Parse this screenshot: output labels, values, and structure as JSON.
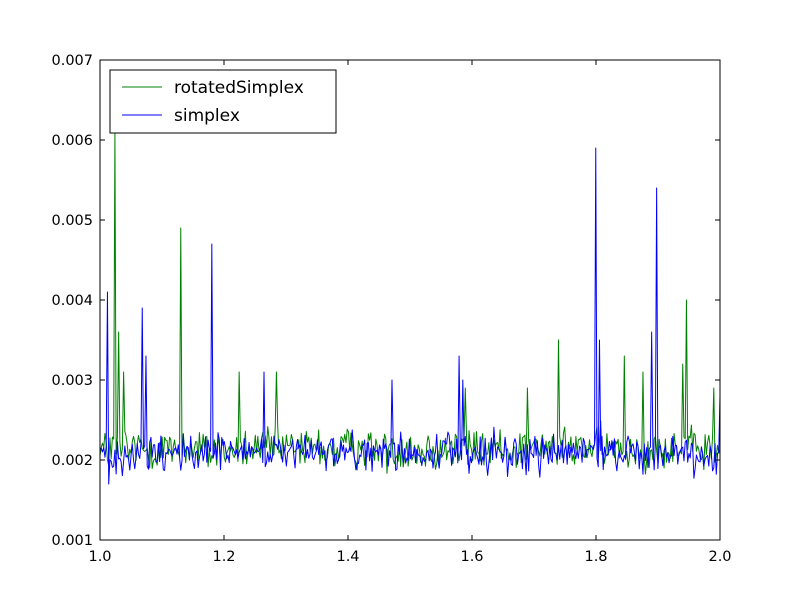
{
  "chart_data": {
    "type": "line",
    "title": "",
    "xlabel": "",
    "ylabel": "",
    "xlim": [
      1.0,
      2.0
    ],
    "ylim": [
      0.001,
      0.007
    ],
    "x_ticks": [
      "1.0",
      "1.2",
      "1.4",
      "1.6",
      "1.8",
      "2.0"
    ],
    "y_ticks": [
      "0.001",
      "0.002",
      "0.003",
      "0.004",
      "0.005",
      "0.006",
      "0.007"
    ],
    "grid": false,
    "legend_position": "top-left",
    "sample_count": 500,
    "series": [
      {
        "name": "rotatedSimplex",
        "color": "#008000",
        "baseline": 0.0021,
        "noise_range": [
          0.00175,
          0.0026
        ],
        "peaks": [
          {
            "x": 1.025,
            "y": 0.0061
          },
          {
            "x": 1.03,
            "y": 0.0036
          },
          {
            "x": 1.038,
            "y": 0.0031
          },
          {
            "x": 1.13,
            "y": 0.0049
          },
          {
            "x": 1.225,
            "y": 0.0031
          },
          {
            "x": 1.285,
            "y": 0.0031
          },
          {
            "x": 1.59,
            "y": 0.0029
          },
          {
            "x": 1.69,
            "y": 0.0029
          },
          {
            "x": 1.74,
            "y": 0.0035
          },
          {
            "x": 1.845,
            "y": 0.0033
          },
          {
            "x": 1.875,
            "y": 0.0031
          },
          {
            "x": 1.94,
            "y": 0.0032
          },
          {
            "x": 1.945,
            "y": 0.004
          },
          {
            "x": 1.99,
            "y": 0.0029
          }
        ]
      },
      {
        "name": "simplex",
        "color": "#0000ff",
        "baseline": 0.00205,
        "noise_range": [
          0.0017,
          0.00255
        ],
        "peaks": [
          {
            "x": 1.013,
            "y": 0.0041
          },
          {
            "x": 1.015,
            "y": 0.0017
          },
          {
            "x": 1.068,
            "y": 0.0039
          },
          {
            "x": 1.075,
            "y": 0.0033
          },
          {
            "x": 1.18,
            "y": 0.0047
          },
          {
            "x": 1.265,
            "y": 0.0031
          },
          {
            "x": 1.47,
            "y": 0.003
          },
          {
            "x": 1.58,
            "y": 0.0033
          },
          {
            "x": 1.585,
            "y": 0.003
          },
          {
            "x": 1.8,
            "y": 0.0059
          },
          {
            "x": 1.805,
            "y": 0.0035
          },
          {
            "x": 1.89,
            "y": 0.0036
          },
          {
            "x": 1.897,
            "y": 0.0054
          },
          {
            "x": 1.999,
            "y": 0.0028
          }
        ]
      }
    ]
  }
}
